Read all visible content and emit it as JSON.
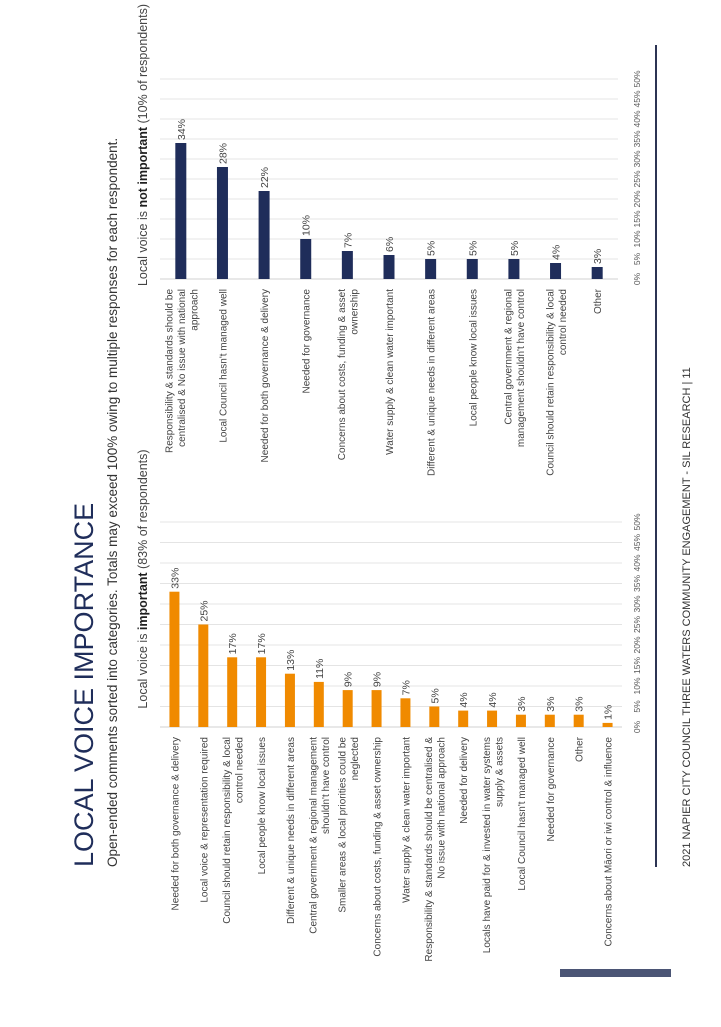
{
  "page": {
    "title": "LOCAL VOICE IMPORTANCE",
    "subtitle": "Open-ended comments sorted into categories. Totals may exceed 100% owing to multiple responses for each respondent.",
    "footer": "2021 NAPIER CITY COUNCIL THREE WATERS COMMUNITY ENGAGEMENT - SIL RESEARCH | 11"
  },
  "colors": {
    "important_bar": "#f08a00",
    "not_important_bar": "#1f2d5a",
    "rule": "#2c3453",
    "accent_tab": "#4b5575"
  },
  "chart_data": [
    {
      "type": "bar",
      "title_prefix": "Local voice is ",
      "title_emph": "important",
      "title_suffix": " (83% of respondents)",
      "categories": [
        "Needed for both governance & delivery",
        "Local voice & representation required",
        "Council should retain responsibility & local control needed",
        "Local people know local issues",
        "Different & unique needs in different areas",
        "Central government & regional management shouldn't have control",
        "Smaller areas & local priorities could be neglected",
        "Concerns about costs, funding & asset ownership",
        "Water supply & clean water important",
        "Responsibility & standards should be centralised & No issue with national approach",
        "Needed for delivery",
        "Locals have paid for & invested in water systems supply & assets",
        "Local Council hasn't managed well",
        "Needed for governance",
        "Other",
        "Concerns about Māori or iwi control & influence"
      ],
      "category_lines": [
        [
          "Needed for both governance & delivery"
        ],
        [
          "Local voice & representation required"
        ],
        [
          "Council should retain responsibility & local",
          "control needed"
        ],
        [
          "Local people know local issues"
        ],
        [
          "Different & unique needs in different areas"
        ],
        [
          "Central government & regional management",
          "shouldn't have control"
        ],
        [
          "Smaller areas & local priorities could be",
          "neglected"
        ],
        [
          "Concerns about costs, funding & asset ownership"
        ],
        [
          "Water supply & clean water important"
        ],
        [
          "Responsibility & standards should be centralised &",
          "No issue with national approach"
        ],
        [
          "Needed for delivery"
        ],
        [
          "Locals have paid for & invested in water systems",
          "supply & assets"
        ],
        [
          "Local Council hasn't managed well"
        ],
        [
          "Needed for governance"
        ],
        [
          "Other"
        ],
        [
          "Concerns about Māori or iwi control & influence"
        ]
      ],
      "values": [
        33,
        25,
        17,
        17,
        13,
        11,
        9,
        9,
        7,
        5,
        4,
        4,
        3,
        3,
        3,
        1
      ],
      "value_labels": [
        "33%",
        "25%",
        "17%",
        "17%",
        "13%",
        "11%",
        "9%",
        "9%",
        "7%",
        "5%",
        "4%",
        "4%",
        "3%",
        "3%",
        "3%",
        "1%"
      ],
      "xlim": [
        0,
        50
      ],
      "ticks": [
        "0%",
        "5%",
        "10%",
        "15%",
        "20%",
        "25%",
        "30%",
        "35%",
        "40%",
        "45%",
        "50%"
      ],
      "grid": true
    },
    {
      "type": "bar",
      "title_prefix": "Local voice is ",
      "title_emph": "not important",
      "title_suffix": " (10% of respondents)",
      "categories": [
        "Responsibility & standards should be centralised & No issue with national approach",
        "Local Council hasn't managed well",
        "Needed for both governance & delivery",
        "Needed for governance",
        "Concerns about costs, funding & asset ownership",
        "Water supply & clean water important",
        "Different & unique needs in different areas",
        "Local people know local issues",
        "Central government & regional management shouldn't have control",
        "Council should retain responsibility & local control needed",
        "Other"
      ],
      "category_lines": [
        [
          "Responsibility & standards should be",
          "centralised & No issue with national",
          "approach"
        ],
        [
          "Local Council hasn't managed well"
        ],
        [
          "Needed for both governance & delivery"
        ],
        [
          "Needed for governance"
        ],
        [
          "Concerns about costs, funding & asset",
          "ownership"
        ],
        [
          "Water supply & clean water important"
        ],
        [
          "Different & unique needs in different areas"
        ],
        [
          "Local people know local issues"
        ],
        [
          "Central government & regional",
          "management shouldn't have control"
        ],
        [
          "Council should retain responsibility & local",
          "control needed"
        ],
        [
          "Other"
        ]
      ],
      "values": [
        34,
        28,
        22,
        10,
        7,
        6,
        5,
        5,
        5,
        4,
        3
      ],
      "value_labels": [
        "34%",
        "28%",
        "22%",
        "10%",
        "7%",
        "6%",
        "5%",
        "5%",
        "5%",
        "4%",
        "3%"
      ],
      "xlim": [
        0,
        50
      ],
      "ticks": [
        "0%",
        "5%",
        "10%",
        "15%",
        "20%",
        "25%",
        "30%",
        "35%",
        "40%",
        "45%",
        "50%"
      ],
      "grid": true
    }
  ]
}
